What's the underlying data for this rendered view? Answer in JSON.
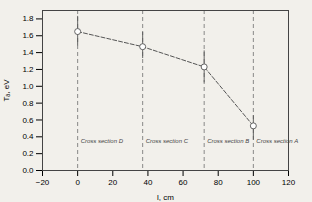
{
  "chart_data": {
    "type": "line",
    "x": [
      0,
      37,
      72,
      100
    ],
    "values": [
      1.65,
      1.47,
      1.23,
      0.53
    ],
    "error_upper": [
      0.18,
      0.17,
      0.19,
      0.12
    ],
    "error_lower": [
      0.17,
      0.14,
      0.19,
      0.17
    ],
    "color": "#555555",
    "marker": "circle",
    "line_style": "dashed",
    "xlabel": "l, cm",
    "ylabel": "Tₐ, eV",
    "xlim": [
      -20,
      120
    ],
    "ylim": [
      0,
      1.9
    ],
    "xticks": [
      -20,
      0,
      20,
      40,
      60,
      80,
      100,
      120
    ],
    "yticks": [
      {
        "value": 0,
        "label": "0.0"
      },
      0.2,
      0.4,
      0.6,
      0.8,
      {
        "value": 1.0,
        "label": "1.0"
      },
      1.2,
      1.4,
      1.6,
      1.8
    ],
    "annotations": [
      {
        "x": 0,
        "text": "Cross section D"
      },
      {
        "x": 37,
        "text": "Cross section C"
      },
      {
        "x": 72,
        "text": "Cross section B"
      },
      {
        "x": 100,
        "text": "Cross section A"
      }
    ],
    "grid": false
  }
}
